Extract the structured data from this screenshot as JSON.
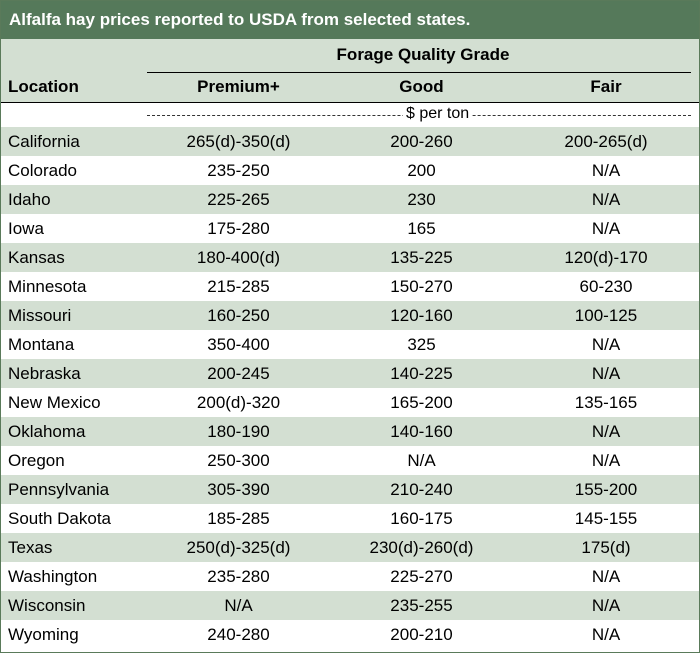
{
  "title": "Alfalfa hay prices reported to USDA from selected states.",
  "header": {
    "group": "Forage Quality Grade",
    "location": "Location",
    "premium": "Premium+",
    "good": "Good",
    "fair": "Fair"
  },
  "unit": "$ per ton",
  "colors": {
    "title_bg": "#55795a",
    "stripe": "#d3dfd2"
  },
  "rows": [
    {
      "location": "California",
      "premium": "265(d)-350(d)",
      "good": "200-260",
      "fair": "200-265(d)"
    },
    {
      "location": "Colorado",
      "premium": "235-250",
      "good": "200",
      "fair": "N/A"
    },
    {
      "location": "Idaho",
      "premium": "225-265",
      "good": "230",
      "fair": "N/A"
    },
    {
      "location": "Iowa",
      "premium": "175-280",
      "good": "165",
      "fair": "N/A"
    },
    {
      "location": "Kansas",
      "premium": "180-400(d)",
      "good": "135-225",
      "fair": "120(d)-170"
    },
    {
      "location": "Minnesota",
      "premium": "215-285",
      "good": "150-270",
      "fair": "60-230"
    },
    {
      "location": "Missouri",
      "premium": "160-250",
      "good": "120-160",
      "fair": "100-125"
    },
    {
      "location": "Montana",
      "premium": "350-400",
      "good": "325",
      "fair": "N/A"
    },
    {
      "location": "Nebraska",
      "premium": "200-245",
      "good": "140-225",
      "fair": "N/A"
    },
    {
      "location": "New Mexico",
      "premium": "200(d)-320",
      "good": "165-200",
      "fair": "135-165"
    },
    {
      "location": "Oklahoma",
      "premium": "180-190",
      "good": "140-160",
      "fair": "N/A"
    },
    {
      "location": "Oregon",
      "premium": "250-300",
      "good": "N/A",
      "fair": "N/A"
    },
    {
      "location": "Pennsylvania",
      "premium": "305-390",
      "good": "210-240",
      "fair": "155-200"
    },
    {
      "location": "South Dakota",
      "premium": "185-285",
      "good": "160-175",
      "fair": "145-155"
    },
    {
      "location": "Texas",
      "premium": "250(d)-325(d)",
      "good": "230(d)-260(d)",
      "fair": "175(d)"
    },
    {
      "location": "Washington",
      "premium": "235-280",
      "good": "225-270",
      "fair": "N/A"
    },
    {
      "location": "Wisconsin",
      "premium": "N/A",
      "good": "235-255",
      "fair": "N/A"
    },
    {
      "location": "Wyoming",
      "premium": "240-280",
      "good": "200-210",
      "fair": "N/A"
    }
  ]
}
